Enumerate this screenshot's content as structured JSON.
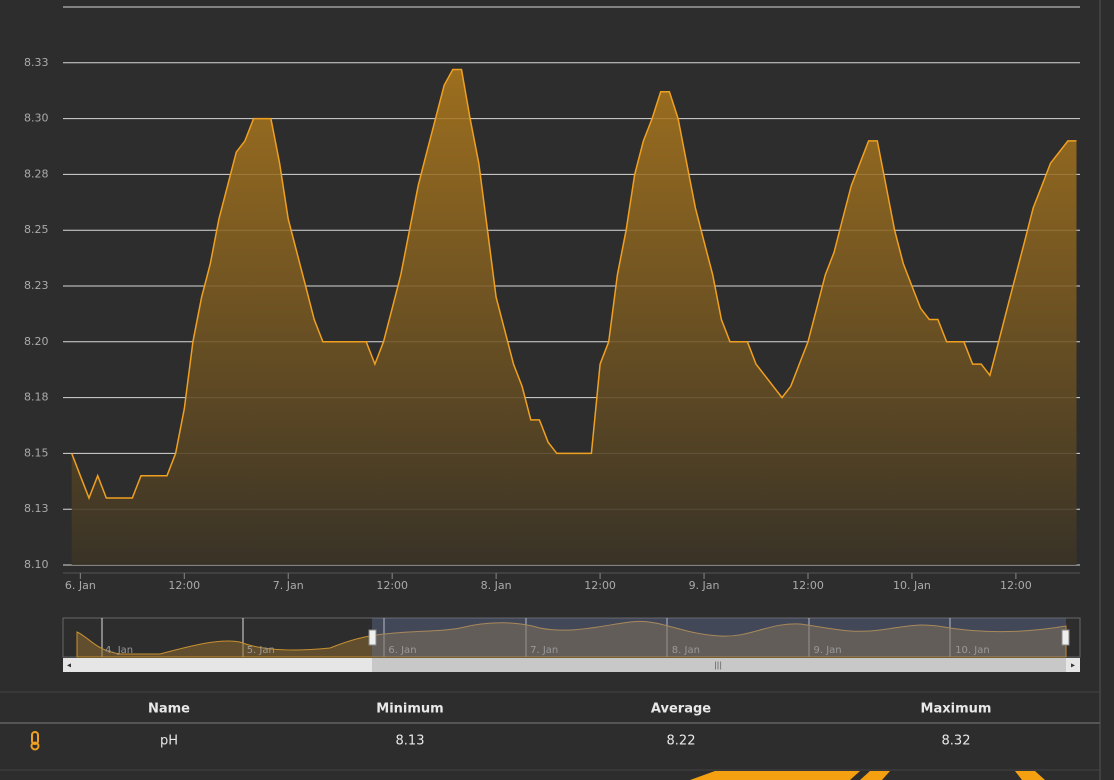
{
  "chart_data": {
    "type": "area",
    "x": [
      -1,
      0,
      1,
      2,
      3,
      4,
      5,
      6,
      7,
      8,
      9,
      10,
      11,
      12,
      13,
      14,
      15,
      16,
      17,
      18,
      19,
      20,
      21,
      22,
      23,
      24,
      25,
      26,
      27,
      28,
      29,
      30,
      31,
      32,
      33,
      34,
      35,
      36,
      37,
      38,
      39,
      40,
      41,
      42,
      43,
      44,
      45,
      46,
      47,
      48,
      49,
      50,
      51,
      52,
      53,
      54,
      55,
      56,
      57,
      58,
      59,
      60,
      61,
      62,
      63,
      64,
      65,
      66,
      67,
      68,
      69,
      70,
      71,
      72,
      73,
      74,
      75,
      76,
      77,
      78,
      79,
      80,
      81,
      82,
      83,
      84,
      85,
      86,
      87,
      88,
      89,
      90,
      91,
      92,
      93,
      94,
      95,
      96,
      97,
      98,
      99,
      100,
      101,
      102,
      103,
      104,
      105,
      106,
      107,
      108,
      109,
      110,
      111,
      112,
      113,
      114,
      115
    ],
    "series": [
      {
        "name": "pH",
        "color": "#f0a020",
        "values": [
          8.15,
          8.14,
          8.13,
          8.14,
          8.13,
          8.13,
          8.13,
          8.13,
          8.14,
          8.14,
          8.14,
          8.14,
          8.15,
          8.17,
          8.2,
          8.22,
          8.235,
          8.255,
          8.27,
          8.285,
          8.29,
          8.3,
          8.3,
          8.3,
          8.28,
          8.255,
          8.24,
          8.225,
          8.21,
          8.2,
          8.2,
          8.2,
          8.2,
          8.2,
          8.2,
          8.19,
          8.2,
          8.215,
          8.23,
          8.25,
          8.27,
          8.285,
          8.3,
          8.315,
          8.322,
          8.322,
          8.3,
          8.28,
          8.25,
          8.22,
          8.205,
          8.19,
          8.18,
          8.165,
          8.165,
          8.155,
          8.15,
          8.15,
          8.15,
          8.15,
          8.15,
          8.19,
          8.2,
          8.23,
          8.25,
          8.275,
          8.29,
          8.3,
          8.312,
          8.312,
          8.3,
          8.28,
          8.26,
          8.245,
          8.23,
          8.21,
          8.2,
          8.2,
          8.2,
          8.19,
          8.185,
          8.18,
          8.175,
          8.18,
          8.19,
          8.2,
          8.215,
          8.23,
          8.24,
          8.255,
          8.27,
          8.28,
          8.29,
          8.29,
          8.27,
          8.25,
          8.235,
          8.225,
          8.215,
          8.21,
          8.21,
          8.2,
          8.2,
          8.2,
          8.19,
          8.19,
          8.185,
          8.2,
          8.215,
          8.23,
          8.245,
          8.26,
          8.27,
          8.28,
          8.285,
          8.29,
          8.29
        ]
      }
    ],
    "xlim": [
      -2,
      115.4
    ],
    "xticks": [
      {
        "value": 0,
        "label": "6. Jan"
      },
      {
        "value": 12,
        "label": "12:00"
      },
      {
        "value": 24,
        "label": "7. Jan"
      },
      {
        "value": 36,
        "label": "12:00"
      },
      {
        "value": 48,
        "label": "8. Jan"
      },
      {
        "value": 60,
        "label": "12:00"
      },
      {
        "value": 72,
        "label": "9. Jan"
      },
      {
        "value": 84,
        "label": "12:00"
      },
      {
        "value": 96,
        "label": "10. Jan"
      },
      {
        "value": 108,
        "label": "12:00"
      }
    ],
    "ylim": [
      8.1,
      8.35
    ],
    "yticks": [
      {
        "value": 8.1,
        "label": "8.10"
      },
      {
        "value": 8.125,
        "label": "8.13"
      },
      8.15,
      {
        "value": 8.175,
        "label": "8.18"
      },
      {
        "value": 8.2,
        "label": "8.20"
      },
      {
        "value": 8.225,
        "label": "8.23"
      },
      8.25,
      {
        "value": 8.275,
        "label": "8.28"
      },
      {
        "value": 8.3,
        "label": "8.30"
      },
      {
        "value": 8.325,
        "label": "8.33"
      }
    ],
    "grid": true
  },
  "navigator": {
    "labels": [
      "4. Jan",
      "5. Jan",
      "6. Jan",
      "7. Jan",
      "8. Jan",
      "9. Jan",
      "10. Jan"
    ]
  },
  "table": {
    "header": [
      "Name",
      "Minimum",
      "Average",
      "Maximum"
    ],
    "rows": [
      [
        "pH",
        "8.13",
        "8.22",
        "8.32"
      ]
    ]
  }
}
